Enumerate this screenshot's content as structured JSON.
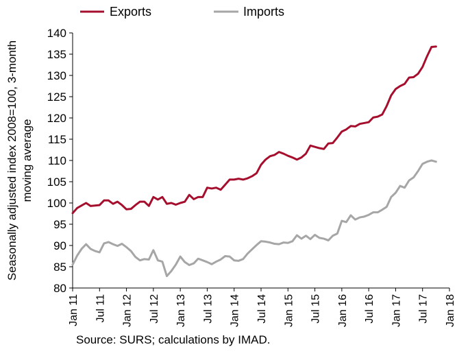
{
  "chart_data": {
    "type": "line",
    "ylabel": "Seasonally adjusted index 2008=100, 3-month moving average",
    "ylim": [
      80,
      140
    ],
    "yticks": [
      80,
      85,
      90,
      95,
      100,
      105,
      110,
      115,
      120,
      125,
      130,
      135,
      140
    ],
    "xlim": [
      0,
      84
    ],
    "xticks": [
      {
        "m": 0,
        "label": "Jan 11"
      },
      {
        "m": 6,
        "label": "Jul 11"
      },
      {
        "m": 12,
        "label": "Jan 12"
      },
      {
        "m": 18,
        "label": "Jul 12"
      },
      {
        "m": 24,
        "label": "Jan 13"
      },
      {
        "m": 30,
        "label": "Jul 13"
      },
      {
        "m": 36,
        "label": "Jan 14"
      },
      {
        "m": 42,
        "label": "Jul 14"
      },
      {
        "m": 48,
        "label": "Jan 15"
      },
      {
        "m": 54,
        "label": "Jul 15"
      },
      {
        "m": 60,
        "label": "Jan 16"
      },
      {
        "m": 66,
        "label": "Jul 16"
      },
      {
        "m": 72,
        "label": "Jan 17"
      },
      {
        "m": 78,
        "label": "Jul 17"
      },
      {
        "m": 84,
        "label": "Jan 18"
      }
    ],
    "grid": false,
    "legend_position": "top",
    "series": [
      {
        "name": "Exports",
        "color": "#a50f2d",
        "values": [
          97.6,
          98.8,
          99.4,
          100.0,
          99.3,
          99.4,
          99.5,
          100.6,
          100.6,
          99.8,
          100.3,
          99.5,
          98.5,
          98.6,
          99.5,
          100.3,
          100.3,
          99.3,
          101.4,
          100.8,
          101.4,
          99.8,
          100.0,
          99.6,
          100.0,
          100.3,
          101.9,
          100.9,
          101.4,
          101.4,
          103.6,
          103.4,
          103.6,
          103.1,
          104.3,
          105.5,
          105.5,
          105.7,
          105.5,
          105.8,
          106.3,
          107.0,
          109.0,
          110.2,
          111.0,
          111.3,
          112.0,
          111.6,
          111.1,
          110.7,
          110.2,
          110.7,
          111.6,
          113.5,
          113.2,
          112.9,
          112.7,
          114.0,
          114.1,
          115.4,
          116.8,
          117.3,
          118.1,
          118.0,
          118.6,
          118.8,
          119.0,
          120.1,
          120.3,
          120.8,
          122.8,
          125.3,
          126.8,
          127.5,
          128.0,
          129.5,
          129.6,
          130.4,
          132.0,
          134.5,
          136.7,
          136.8
        ]
      },
      {
        "name": "Imports",
        "color": "#a6a6a6",
        "values": [
          85.5,
          87.6,
          89.2,
          90.3,
          89.2,
          88.7,
          88.4,
          90.5,
          90.8,
          90.3,
          89.9,
          90.4,
          89.6,
          88.7,
          87.3,
          86.5,
          86.8,
          86.7,
          88.9,
          86.5,
          86.2,
          82.8,
          84.0,
          85.5,
          87.4,
          86.1,
          85.4,
          85.8,
          86.9,
          86.5,
          86.1,
          85.6,
          86.2,
          86.7,
          87.5,
          87.4,
          86.5,
          86.4,
          86.8,
          88.1,
          89.1,
          90.1,
          91.0,
          90.9,
          90.7,
          90.4,
          90.3,
          90.7,
          90.6,
          91.0,
          92.4,
          91.6,
          92.3,
          91.5,
          92.5,
          91.8,
          91.6,
          91.2,
          92.3,
          92.8,
          95.8,
          95.5,
          97.1,
          96.1,
          96.6,
          96.8,
          97.2,
          97.8,
          97.8,
          98.4,
          99.1,
          101.4,
          102.4,
          104.0,
          103.6,
          105.3,
          106.0,
          107.5,
          109.2,
          109.7,
          110.0,
          109.7
        ]
      }
    ]
  },
  "source_note": "Source: SURS; calculations by IMAD."
}
